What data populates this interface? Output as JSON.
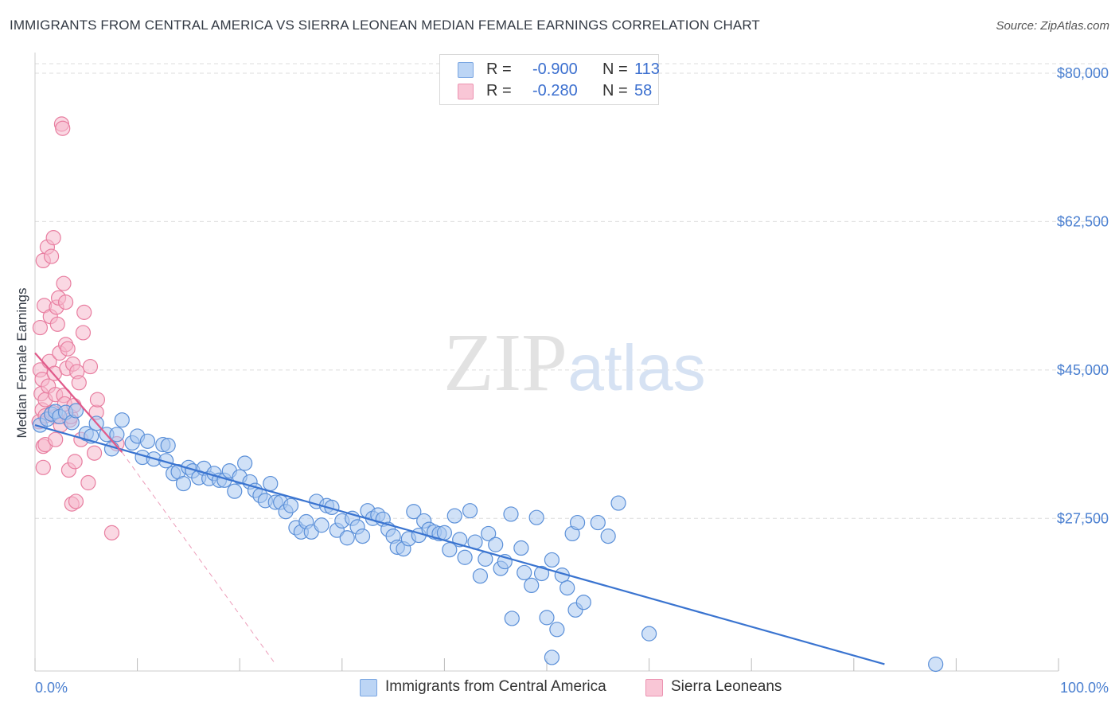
{
  "title": "IMMIGRANTS FROM CENTRAL AMERICA VS SIERRA LEONEAN MEDIAN FEMALE EARNINGS CORRELATION CHART",
  "source": "Source: ZipAtlas.com",
  "watermark": {
    "zip": "ZIP",
    "atlas": "atlas"
  },
  "colors": {
    "blue_fill": "#a9c8f0",
    "blue_stroke": "#5a8fd8",
    "blue_line": "#3a74d0",
    "pink_fill": "#f6b8cc",
    "pink_stroke": "#e87ea0",
    "pink_line": "#e05a8a",
    "grid": "#dcdcdc",
    "tick_text": "#4a7fd0"
  },
  "legend_top": [
    {
      "r_label": "R =",
      "r_value": "-0.900",
      "n_label": "N =",
      "n_value": "113"
    },
    {
      "r_label": "R =",
      "r_value": "-0.280",
      "n_label": "N =",
      "n_value": "58"
    }
  ],
  "legend_bottom": [
    {
      "label": "Immigrants from Central America"
    },
    {
      "label": "Sierra Leoneans"
    }
  ],
  "chart_data": {
    "type": "scatter",
    "title": "IMMIGRANTS FROM CENTRAL AMERICA VS SIERRA LEONEAN MEDIAN FEMALE EARNINGS CORRELATION CHART",
    "xlabel": "",
    "ylabel": "Median Female Earnings",
    "xlim": [
      0,
      100
    ],
    "ylim": [
      9500,
      81500
    ],
    "x_tick_labels": [
      "0.0%",
      "100.0%"
    ],
    "y_ticks": [
      27500,
      45000,
      62500,
      80000
    ],
    "y_tick_labels": [
      "$27,500",
      "$45,000",
      "$62,500",
      "$80,000"
    ],
    "grid": true,
    "series": [
      {
        "name": "Immigrants from Central America",
        "points": [
          [
            0.5,
            38500
          ],
          [
            1.2,
            39200
          ],
          [
            1.6,
            39800
          ],
          [
            2.0,
            40100
          ],
          [
            2.4,
            39500
          ],
          [
            3.0,
            40000
          ],
          [
            3.6,
            38800
          ],
          [
            4.0,
            40200
          ],
          [
            5.0,
            37500
          ],
          [
            5.5,
            37200
          ],
          [
            6.0,
            38700
          ],
          [
            7.0,
            37400
          ],
          [
            7.5,
            35700
          ],
          [
            8.0,
            37400
          ],
          [
            8.5,
            39100
          ],
          [
            9.5,
            36400
          ],
          [
            10.0,
            37200
          ],
          [
            10.5,
            34700
          ],
          [
            11.0,
            36600
          ],
          [
            11.6,
            34500
          ],
          [
            12.5,
            36200
          ],
          [
            12.8,
            34300
          ],
          [
            13.0,
            36100
          ],
          [
            13.5,
            32800
          ],
          [
            14.0,
            33000
          ],
          [
            14.5,
            31600
          ],
          [
            15.0,
            33500
          ],
          [
            15.4,
            33100
          ],
          [
            16.0,
            32300
          ],
          [
            16.5,
            33400
          ],
          [
            17.0,
            32200
          ],
          [
            17.5,
            32800
          ],
          [
            18.0,
            32000
          ],
          [
            18.5,
            32000
          ],
          [
            19.0,
            33100
          ],
          [
            19.5,
            30700
          ],
          [
            20.0,
            32400
          ],
          [
            20.5,
            34000
          ],
          [
            21.0,
            31800
          ],
          [
            21.5,
            30800
          ],
          [
            22.0,
            30200
          ],
          [
            22.5,
            29600
          ],
          [
            23.0,
            31600
          ],
          [
            23.5,
            29400
          ],
          [
            24.0,
            29400
          ],
          [
            24.5,
            28300
          ],
          [
            25.0,
            29000
          ],
          [
            25.5,
            26400
          ],
          [
            26.0,
            25900
          ],
          [
            26.5,
            27100
          ],
          [
            27.0,
            25900
          ],
          [
            27.5,
            29500
          ],
          [
            28.0,
            26700
          ],
          [
            28.5,
            29000
          ],
          [
            29.0,
            28800
          ],
          [
            29.5,
            26100
          ],
          [
            30.0,
            27200
          ],
          [
            30.5,
            25200
          ],
          [
            31.0,
            27500
          ],
          [
            31.5,
            26500
          ],
          [
            32.0,
            25400
          ],
          [
            32.5,
            28400
          ],
          [
            33.0,
            27500
          ],
          [
            33.5,
            27900
          ],
          [
            34.0,
            27400
          ],
          [
            34.5,
            26200
          ],
          [
            35.0,
            25400
          ],
          [
            35.4,
            24100
          ],
          [
            36.0,
            23900
          ],
          [
            36.5,
            25100
          ],
          [
            37.0,
            28300
          ],
          [
            37.5,
            25500
          ],
          [
            38.0,
            27200
          ],
          [
            38.5,
            26200
          ],
          [
            39.0,
            25900
          ],
          [
            39.5,
            25700
          ],
          [
            40.0,
            25800
          ],
          [
            40.5,
            23800
          ],
          [
            41.0,
            27800
          ],
          [
            41.5,
            25000
          ],
          [
            42.0,
            22900
          ],
          [
            42.5,
            28400
          ],
          [
            43.0,
            24700
          ],
          [
            43.5,
            20700
          ],
          [
            44.0,
            22700
          ],
          [
            44.3,
            25700
          ],
          [
            45.0,
            24400
          ],
          [
            45.5,
            21600
          ],
          [
            45.9,
            22400
          ],
          [
            46.5,
            28000
          ],
          [
            46.6,
            15700
          ],
          [
            47.5,
            24000
          ],
          [
            47.8,
            21100
          ],
          [
            48.5,
            19600
          ],
          [
            49.0,
            27600
          ],
          [
            49.5,
            21000
          ],
          [
            50.0,
            15800
          ],
          [
            50.5,
            22600
          ],
          [
            51.0,
            14400
          ],
          [
            51.5,
            20800
          ],
          [
            52.0,
            19300
          ],
          [
            52.5,
            25700
          ],
          [
            52.8,
            16700
          ],
          [
            53.0,
            27000
          ],
          [
            53.6,
            17600
          ],
          [
            55.0,
            27000
          ],
          [
            56.0,
            25400
          ],
          [
            57.0,
            29300
          ],
          [
            88.0,
            10300
          ],
          [
            50.5,
            11100
          ],
          [
            60.0,
            13900
          ]
        ]
      },
      {
        "name": "Sierra Leoneans",
        "points": [
          [
            0.4,
            38900
          ],
          [
            0.5,
            45000
          ],
          [
            0.5,
            50000
          ],
          [
            0.6,
            42200
          ],
          [
            0.7,
            43900
          ],
          [
            0.7,
            40300
          ],
          [
            0.8,
            36000
          ],
          [
            0.8,
            57900
          ],
          [
            0.8,
            33500
          ],
          [
            0.9,
            52600
          ],
          [
            1.0,
            41500
          ],
          [
            1.0,
            39600
          ],
          [
            1.0,
            36200
          ],
          [
            1.2,
            59500
          ],
          [
            1.3,
            43100
          ],
          [
            1.4,
            46000
          ],
          [
            1.5,
            51300
          ],
          [
            1.6,
            58400
          ],
          [
            1.7,
            40000
          ],
          [
            1.8,
            60600
          ],
          [
            1.9,
            44600
          ],
          [
            2.0,
            42100
          ],
          [
            2.0,
            39500
          ],
          [
            2.0,
            36800
          ],
          [
            2.1,
            52400
          ],
          [
            2.2,
            50400
          ],
          [
            2.3,
            53500
          ],
          [
            2.4,
            47000
          ],
          [
            2.5,
            38500
          ],
          [
            2.6,
            74000
          ],
          [
            2.7,
            73500
          ],
          [
            2.8,
            55200
          ],
          [
            2.8,
            42000
          ],
          [
            2.9,
            41000
          ],
          [
            3.0,
            48000
          ],
          [
            3.0,
            53000
          ],
          [
            3.1,
            45200
          ],
          [
            3.2,
            47500
          ],
          [
            3.3,
            33200
          ],
          [
            3.4,
            39100
          ],
          [
            3.5,
            39500
          ],
          [
            3.6,
            29200
          ],
          [
            3.7,
            45700
          ],
          [
            3.8,
            40800
          ],
          [
            3.9,
            34200
          ],
          [
            4.0,
            29500
          ],
          [
            4.1,
            44800
          ],
          [
            4.3,
            43500
          ],
          [
            4.5,
            36800
          ],
          [
            4.7,
            49400
          ],
          [
            4.8,
            51800
          ],
          [
            5.2,
            31700
          ],
          [
            5.4,
            45400
          ],
          [
            5.8,
            35200
          ],
          [
            6.0,
            40000
          ],
          [
            6.1,
            41500
          ],
          [
            7.5,
            25800
          ],
          [
            8.0,
            36300
          ]
        ]
      }
    ],
    "trend_lines": [
      {
        "series": "Immigrants from Central America",
        "from": [
          0,
          38500
        ],
        "to": [
          83,
          10300
        ],
        "style": "solid"
      },
      {
        "series": "Sierra Leoneans",
        "from": [
          0,
          47000
        ],
        "to": [
          8.5,
          35300
        ],
        "style": "solid"
      },
      {
        "series": "Sierra Leoneans",
        "from": [
          8.5,
          35300
        ],
        "to": [
          23.5,
          10300
        ],
        "style": "dashed"
      }
    ]
  }
}
